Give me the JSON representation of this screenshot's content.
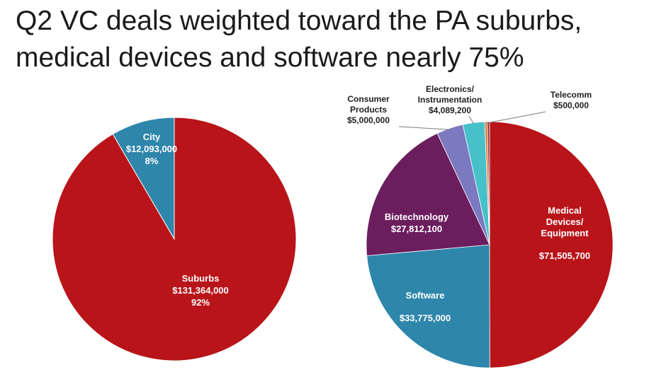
{
  "title": {
    "line1": "Q2 VC deals weighted toward the PA suburbs,",
    "line2": "medical devices and software nearly 75%"
  },
  "chart_data": [
    {
      "type": "pie",
      "title": "",
      "slices": [
        {
          "label": "City",
          "value": 12093000,
          "value_text": "$12,093,000",
          "pct_text": "8%",
          "color": "#2e86ab"
        },
        {
          "label": "Suburbs",
          "value": 131364000,
          "value_text": "$131,364,000",
          "pct_text": "92%",
          "color": "#b81419"
        }
      ]
    },
    {
      "type": "pie",
      "title": "",
      "slices": [
        {
          "label": "Medical Devices/ Equipment",
          "label_lines": [
            "Medical",
            "Devices/",
            "Equipment"
          ],
          "value": 71505700,
          "value_text": "$71,505,700",
          "color": "#b81419"
        },
        {
          "label": "Software",
          "label_lines": [
            "Software"
          ],
          "value": 33775000,
          "value_text": "$33,775,000",
          "color": "#2e86ab"
        },
        {
          "label": "Biotechnology",
          "label_lines": [
            "Biotechnology"
          ],
          "value": 27812100,
          "value_text": "$27,812,100",
          "color": "#6b1d5e"
        },
        {
          "label": "Consumer Products",
          "label_lines": [
            "Consumer",
            "Products"
          ],
          "value": 5000000,
          "value_text": "$5,000,000",
          "color": "#7b79c0"
        },
        {
          "label": "Electronics/ Instrumentation",
          "label_lines": [
            "Electronics/",
            "Instrumentation"
          ],
          "value": 4089200,
          "value_text": "$4,089,200",
          "color": "#46c1c9"
        },
        {
          "label": "Telecomm",
          "label_lines": [
            "Telecomm"
          ],
          "value": 500000,
          "value_text": "$500,000",
          "color": "#e8783a"
        },
        {
          "label": "",
          "label_lines": [],
          "value": 400000,
          "value_text": "",
          "color": "#8b2e2e"
        }
      ]
    }
  ]
}
